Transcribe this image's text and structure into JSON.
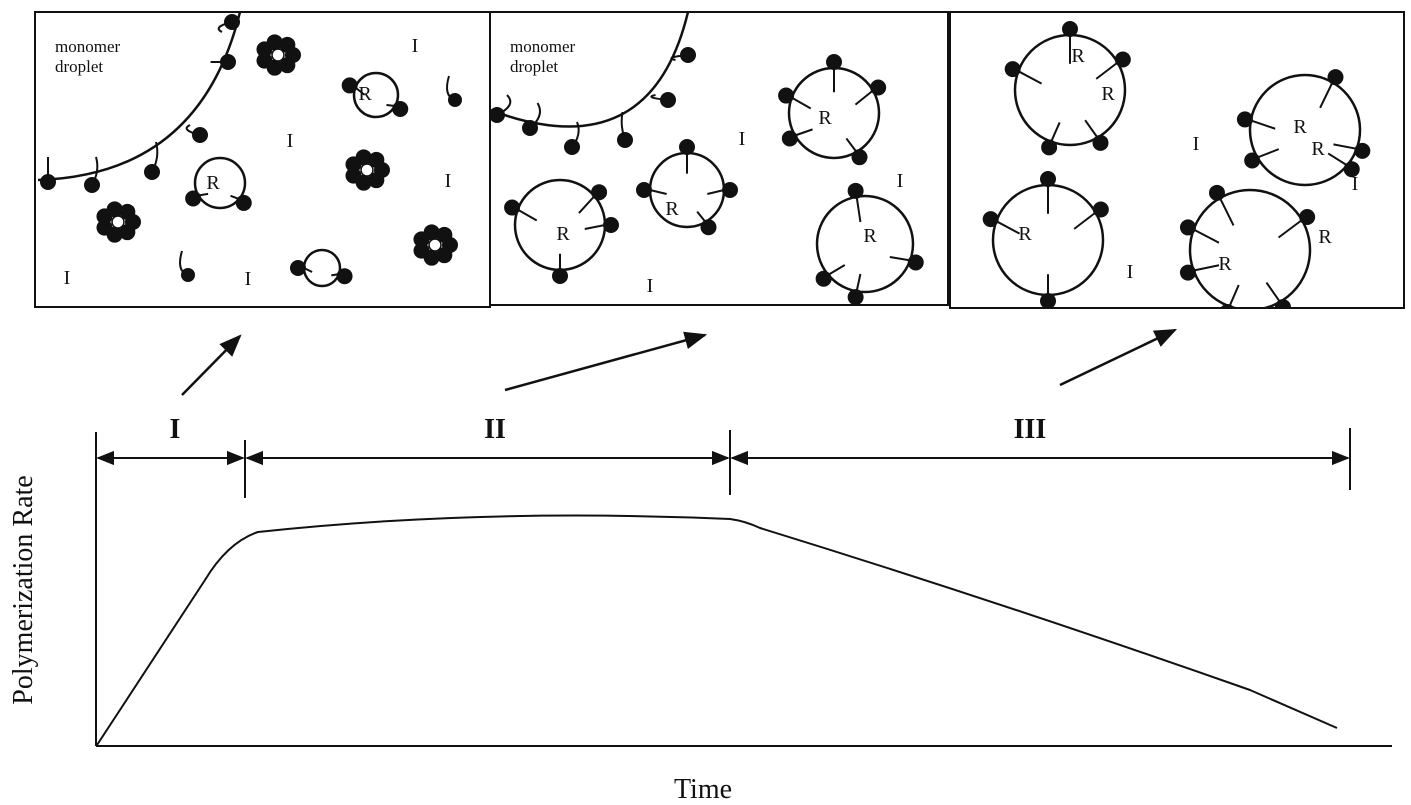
{
  "panels": [
    {
      "droplet_label": [
        "monomer",
        "droplet"
      ],
      "labels": [
        "I",
        "I",
        "I",
        "I",
        "I",
        "R",
        "R"
      ]
    },
    {
      "droplet_label": [
        "monomer",
        "droplet"
      ],
      "labels": [
        "I",
        "I",
        "I",
        "R",
        "R",
        "R",
        "R"
      ]
    },
    {
      "labels": [
        "I",
        "I",
        "I",
        "R",
        "R",
        "R",
        "R",
        "R",
        "R",
        "R"
      ]
    }
  ],
  "phases": [
    "I",
    "II",
    "III"
  ],
  "axes": {
    "y_label": "Polymerization Rate",
    "x_label": "Time"
  }
}
